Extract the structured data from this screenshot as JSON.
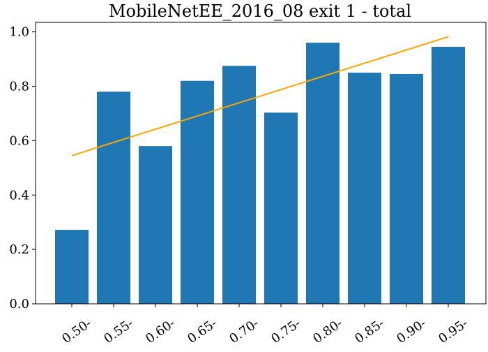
{
  "chart_data": {
    "type": "bar",
    "title": "MobileNetEE_2016_08 exit 1 - total",
    "xlabel": "",
    "ylabel": "",
    "categories": [
      "0.50-",
      "0.55-",
      "0.60-",
      "0.65-",
      "0.70-",
      "0.75-",
      "0.80-",
      "0.85-",
      "0.90-",
      "0.95-"
    ],
    "values": [
      0.272,
      0.78,
      0.58,
      0.82,
      0.875,
      0.703,
      0.96,
      0.85,
      0.845,
      0.945
    ],
    "ylim": [
      0,
      1.0
    ],
    "yticks": [
      0.0,
      0.2,
      0.4,
      0.6,
      0.8,
      1.0
    ],
    "ytick_labels": [
      "0.0",
      "0.2",
      "0.4",
      "0.6",
      "0.8",
      "1.0"
    ],
    "grid": false,
    "legend": "none",
    "reference_line": {
      "type": "line",
      "x_start": "0.50-",
      "x_end": "0.95-",
      "y_values": [
        0.545,
        0.982
      ]
    },
    "colors": {
      "bar": "#1f77b4",
      "reference_line": "#ffa500",
      "axes": "#000000"
    }
  }
}
